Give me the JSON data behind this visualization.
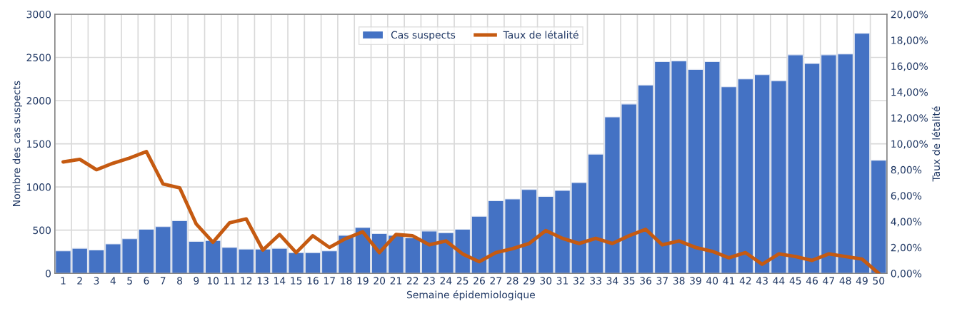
{
  "chart_data": {
    "type": "bar",
    "xlabel": "Semaine épidemiologique",
    "ylabel": "Nombre des cas suspects",
    "y2label": "Taux de létalité",
    "categories": [
      "1",
      "2",
      "3",
      "4",
      "5",
      "6",
      "7",
      "8",
      "9",
      "10",
      "11",
      "12",
      "13",
      "14",
      "15",
      "16",
      "17",
      "18",
      "19",
      "20",
      "21",
      "22",
      "23",
      "24",
      "25",
      "26",
      "27",
      "28",
      "29",
      "30",
      "31",
      "32",
      "33",
      "34",
      "35",
      "36",
      "37",
      "38",
      "39",
      "40",
      "41",
      "42",
      "43",
      "44",
      "45",
      "46",
      "47",
      "48",
      "49",
      "50"
    ],
    "series": [
      {
        "name": "Cas suspects",
        "color": "#4472c4",
        "values": [
          260,
          290,
          270,
          340,
          400,
          510,
          540,
          610,
          370,
          380,
          300,
          280,
          280,
          290,
          240,
          240,
          260,
          440,
          530,
          460,
          440,
          410,
          490,
          470,
          510,
          660,
          840,
          860,
          970,
          890,
          960,
          1050,
          1380,
          1810,
          1960,
          2180,
          2450,
          2460,
          2360,
          2450,
          2160,
          2250,
          2300,
          2230,
          2530,
          2430,
          2530,
          2540,
          2780,
          1310
        ]
      },
      {
        "name": "Taux de létalité",
        "type": "line",
        "axis": "y2",
        "color": "#c55a11",
        "values": [
          8.6,
          8.8,
          8.0,
          8.5,
          8.9,
          9.4,
          6.9,
          6.6,
          3.8,
          2.4,
          3.9,
          4.2,
          1.8,
          3.0,
          1.6,
          2.9,
          2.0,
          2.7,
          3.2,
          1.6,
          3.0,
          2.9,
          2.2,
          2.5,
          1.5,
          0.9,
          1.6,
          1.9,
          2.3,
          3.3,
          2.7,
          2.3,
          2.7,
          2.3,
          2.9,
          3.4,
          2.2,
          2.5,
          2.0,
          1.7,
          1.2,
          1.6,
          0.7,
          1.5,
          1.3,
          1.0,
          1.5,
          1.3,
          1.1,
          0.0
        ]
      }
    ],
    "ylim": [
      0,
      3000
    ],
    "yticks": [
      0,
      500,
      1000,
      1500,
      2000,
      2500,
      3000
    ],
    "y2lim": [
      0,
      20
    ],
    "y2ticks": [
      {
        "value": 0,
        "label": "0,00%"
      },
      {
        "value": 2,
        "label": "2,00%"
      },
      {
        "value": 4,
        "label": "4,00%"
      },
      {
        "value": 6,
        "label": "6,00%"
      },
      {
        "value": 8,
        "label": "8,00%"
      },
      {
        "value": 10,
        "label": "10,00%"
      },
      {
        "value": 12,
        "label": "12,00%"
      },
      {
        "value": 14,
        "label": "14,00%"
      },
      {
        "value": 16,
        "label": "16,00%"
      },
      {
        "value": 18,
        "label": "18,00%"
      },
      {
        "value": 20,
        "label": "20,00%"
      }
    ],
    "grid": true,
    "legend": "top",
    "marker": "none",
    "line_style": "solid"
  }
}
